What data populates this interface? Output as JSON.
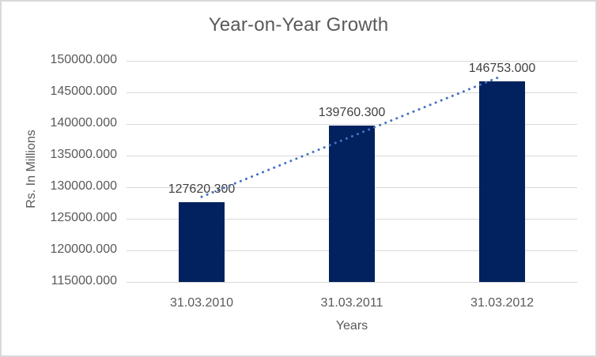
{
  "chart_data": {
    "type": "bar",
    "title": "Year-on-Year Growth",
    "xlabel": "Years",
    "ylabel": "Rs. In Millions",
    "categories": [
      "31.03.2010",
      "31.03.2011",
      "31.03.2012"
    ],
    "values": [
      127620.3,
      139760.3,
      146753.0
    ],
    "data_labels": [
      "127620.300",
      "139760.300",
      "146753.000"
    ],
    "ylim": [
      115000,
      150000
    ],
    "ytick_step": 5000,
    "ytick_labels": [
      "150000.000",
      "145000.000",
      "140000.000",
      "135000.000",
      "130000.000",
      "125000.000",
      "120000.000",
      "115000.000"
    ],
    "grid": true,
    "legend_position": "none",
    "trendline": {
      "type": "linear",
      "style": "dotted"
    },
    "colors": {
      "bar": "#02215F",
      "trendline": "#4472C4",
      "gridline": "#D9D9D9",
      "axis_text": "#595959",
      "title_text": "#595959",
      "data_label_text": "#3F3F3F",
      "chart_border": "#D9D9D9",
      "background": "#FFFFFF"
    }
  }
}
